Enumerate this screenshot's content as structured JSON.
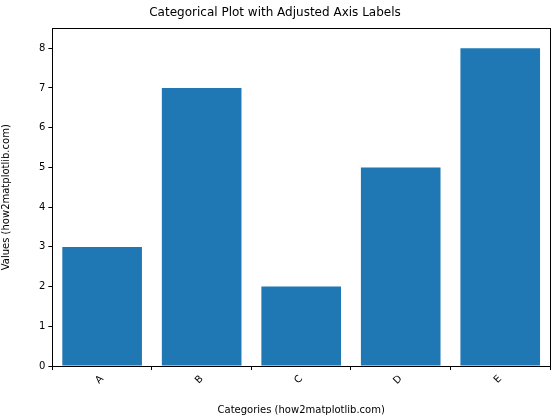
{
  "chart_data": {
    "type": "bar",
    "title": "Categorical Plot with Adjusted Axis Labels",
    "x_label": "Categories (how2matplotlib.com)",
    "y_label": "Values (how2matplotlib.com)",
    "categories": [
      "A",
      "B",
      "C",
      "D",
      "E"
    ],
    "values": [
      3,
      7,
      2,
      5,
      8
    ],
    "color": "#1f77b4",
    "ylim": [
      0,
      8.5
    ],
    "yticks": [
      0,
      1,
      2,
      3,
      4,
      5,
      6,
      7,
      8
    ],
    "grid": false
  }
}
